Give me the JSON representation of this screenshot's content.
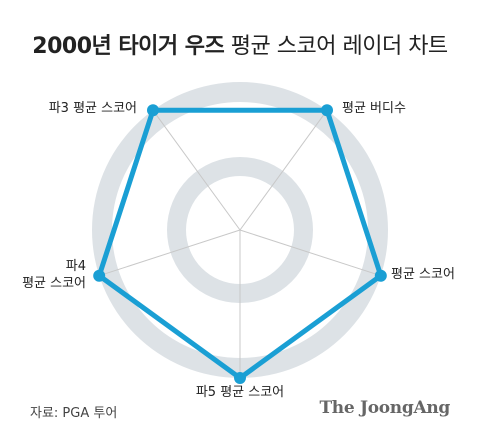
{
  "chart_data": {
    "type": "radar",
    "title_bold": "2000년 타이거 우즈",
    "title_rest": "평균 스코어 레이더 차트",
    "axes": [
      {
        "label_lines": [
          "평균 버디수"
        ]
      },
      {
        "label_lines": [
          "평균 스코어"
        ]
      },
      {
        "label_lines": [
          "파5 평균 스코어"
        ]
      },
      {
        "label_lines": [
          "파4",
          "평균 스코어"
        ]
      },
      {
        "label_lines": [
          "파3 평균 스코어"
        ]
      }
    ],
    "values": [
      1,
      1,
      1,
      1,
      1
    ],
    "range": [
      0,
      1
    ],
    "grid": "concentric rings",
    "colors": {
      "series": "#1a9fd4",
      "ring": "#dde2e6",
      "spoke": "#c8c8c8"
    }
  },
  "footer": {
    "source": "자료: PGA 투어",
    "brand": "The JoongAng"
  }
}
